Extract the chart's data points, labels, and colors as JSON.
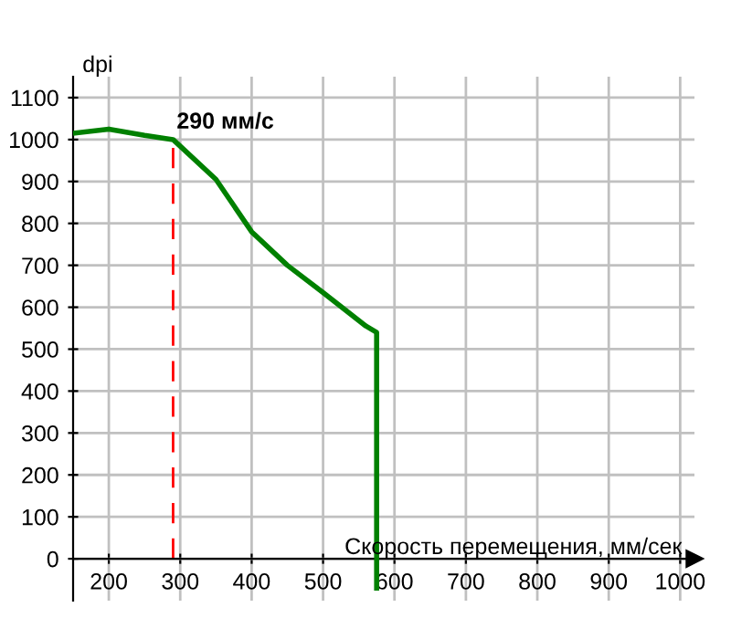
{
  "chart_data": {
    "type": "line",
    "xlabel": "Скорость перемещения, мм/сек",
    "ylabel": "dpi",
    "series": [
      {
        "color": "#008000",
        "x": [
          150,
          200,
          250,
          290,
          350,
          400,
          450,
          500,
          560,
          575,
          575
        ],
        "values": [
          1015,
          1025,
          1010,
          1000,
          905,
          780,
          700,
          635,
          555,
          540,
          -70
        ]
      }
    ],
    "xlim": [
      150,
      1020
    ],
    "ylim": [
      -100,
      1150
    ],
    "xticks": [
      200,
      300,
      400,
      500,
      600,
      700,
      800,
      900,
      1000
    ],
    "yticks": [
      0,
      100,
      200,
      300,
      400,
      500,
      600,
      700,
      800,
      900,
      1000,
      1100
    ],
    "ref_lines": [
      {
        "axis": "x",
        "value": 290,
        "label": "290 мм/с",
        "color": "#ff0000",
        "line_style": "dashed"
      }
    ],
    "grid": true,
    "marker": "none",
    "line_style": "solid"
  }
}
